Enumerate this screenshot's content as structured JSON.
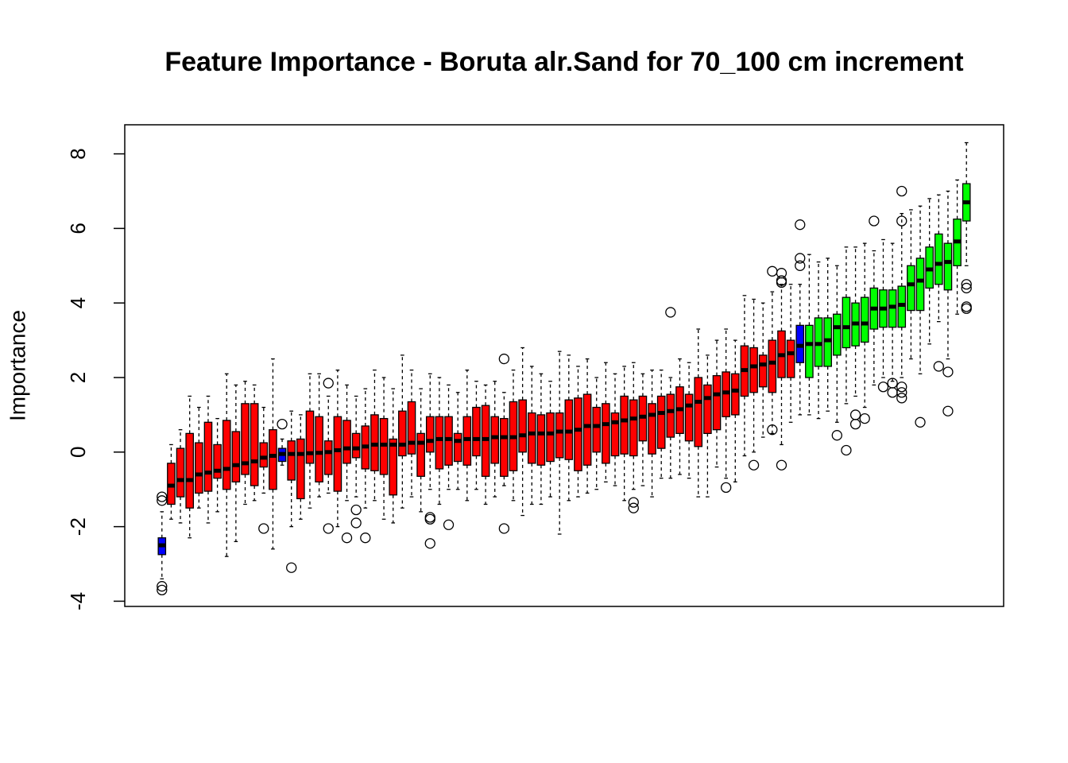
{
  "chart_data": {
    "type": "boxplot",
    "title": "Feature Importance - Boruta alr.Sand for 70_100 cm increment",
    "y_label": "Importance",
    "ylim": [
      -4.14,
      8.78
    ],
    "yticks": [
      -4,
      -2,
      0,
      2,
      4,
      6,
      8
    ],
    "min": [
      -3.4,
      -1.8,
      -1.9,
      -2.3,
      -1.5,
      -1.9,
      -1.6,
      -2.8,
      -2.4,
      -1.4,
      -1.3,
      -1.1,
      -2.6,
      -0.35,
      -2.0,
      -1.8,
      -1.5,
      -1.2,
      -1.1,
      -2.0,
      -1.3,
      -1.2,
      -1.5,
      -1.3,
      -1.8,
      -1.9,
      -1.5,
      -1.2,
      -1.6,
      -1.0,
      -1.4,
      -1.0,
      -1.0,
      -1.3,
      -1.0,
      -1.4,
      -1.2,
      -0.9,
      -1.3,
      -1.7,
      -1.4,
      -1.4,
      -1.2,
      -2.2,
      -1.3,
      -1.2,
      -1.1,
      -1.0,
      -0.8,
      -0.9,
      -1.3,
      -1.0,
      -0.9,
      -1.2,
      -0.7,
      -0.7,
      -0.6,
      -0.7,
      -1.2,
      -1.2,
      -0.4,
      -0.7,
      -0.8,
      -0.1,
      0.0,
      0.4,
      0.5,
      0.2,
      0.8,
      1.0,
      1.0,
      0.9,
      1.1,
      0.8,
      1.3,
      1.5,
      1.2,
      1.8,
      2.0,
      1.9,
      2.0,
      2.5,
      2.1,
      2.9,
      3.5,
      2.5,
      3.7,
      5.0
    ],
    "q1": [
      -2.75,
      -1.4,
      -1.2,
      -1.5,
      -1.1,
      -1.05,
      -0.7,
      -1.0,
      -0.8,
      -0.6,
      -0.9,
      -0.4,
      -1.0,
      -0.25,
      -0.75,
      -1.25,
      -0.3,
      -0.8,
      -0.6,
      -1.05,
      -0.3,
      -0.15,
      -0.45,
      -0.5,
      -0.6,
      -1.15,
      -0.1,
      -0.05,
      -0.65,
      0.0,
      -0.45,
      -0.35,
      -0.25,
      -0.35,
      -0.1,
      -0.65,
      -0.3,
      -0.65,
      -0.5,
      0.0,
      -0.3,
      -0.35,
      -0.25,
      -0.15,
      -0.2,
      -0.5,
      -0.35,
      0.0,
      -0.3,
      -0.1,
      -0.05,
      -0.1,
      0.3,
      -0.05,
      0.1,
      0.4,
      0.5,
      0.3,
      0.15,
      0.5,
      0.6,
      0.95,
      1.0,
      1.5,
      1.6,
      1.75,
      1.6,
      2.0,
      2.0,
      2.4,
      2.0,
      2.3,
      2.3,
      2.6,
      2.8,
      2.85,
      2.95,
      3.3,
      3.35,
      3.35,
      3.35,
      3.8,
      3.8,
      4.4,
      4.5,
      4.35,
      5.0,
      6.2
    ],
    "median": [
      -2.5,
      -0.9,
      -0.75,
      -0.75,
      -0.6,
      -0.55,
      -0.5,
      -0.45,
      -0.35,
      -0.3,
      -0.25,
      -0.15,
      -0.1,
      -0.05,
      -0.05,
      -0.05,
      -0.03,
      -0.02,
      0.0,
      0.05,
      0.1,
      0.1,
      0.15,
      0.2,
      0.2,
      0.2,
      0.2,
      0.25,
      0.25,
      0.3,
      0.35,
      0.35,
      0.3,
      0.35,
      0.35,
      0.35,
      0.4,
      0.4,
      0.4,
      0.45,
      0.5,
      0.5,
      0.5,
      0.55,
      0.55,
      0.6,
      0.7,
      0.7,
      0.75,
      0.8,
      0.85,
      0.9,
      0.95,
      1.0,
      1.05,
      1.1,
      1.15,
      1.25,
      1.35,
      1.45,
      1.55,
      1.6,
      1.65,
      2.2,
      2.3,
      2.35,
      2.4,
      2.6,
      2.65,
      2.85,
      2.9,
      2.9,
      3.0,
      3.35,
      3.35,
      3.45,
      3.45,
      3.85,
      3.85,
      3.9,
      3.95,
      4.5,
      4.6,
      4.9,
      5.05,
      5.1,
      5.65,
      6.7
    ],
    "q3": [
      -2.3,
      -0.3,
      0.1,
      0.5,
      0.25,
      0.8,
      0.2,
      0.85,
      0.55,
      1.3,
      1.3,
      0.25,
      0.6,
      0.1,
      0.3,
      0.35,
      1.1,
      0.95,
      0.3,
      0.95,
      0.85,
      0.5,
      0.7,
      1.0,
      0.9,
      0.35,
      1.1,
      1.35,
      0.5,
      0.95,
      0.95,
      0.95,
      0.5,
      0.95,
      1.2,
      1.25,
      0.95,
      0.9,
      1.35,
      1.4,
      1.05,
      1.0,
      1.05,
      1.05,
      1.4,
      1.45,
      1.55,
      1.2,
      1.3,
      1.05,
      1.5,
      1.4,
      1.5,
      1.3,
      1.5,
      1.55,
      1.75,
      1.55,
      2.0,
      1.8,
      2.05,
      2.15,
      2.1,
      2.85,
      2.8,
      2.6,
      3.0,
      3.25,
      3.0,
      3.4,
      3.4,
      3.6,
      3.6,
      3.7,
      4.15,
      4.0,
      4.15,
      4.4,
      4.35,
      4.35,
      4.45,
      5.0,
      5.2,
      5.5,
      5.85,
      5.6,
      6.25,
      7.2
    ],
    "max": [
      -1.6,
      0.2,
      0.6,
      1.5,
      1.2,
      1.5,
      0.9,
      2.1,
      1.8,
      1.9,
      1.8,
      1.2,
      2.5,
      0.35,
      1.1,
      1.0,
      2.1,
      2.1,
      1.5,
      2.2,
      1.8,
      1.5,
      1.7,
      2.2,
      2.0,
      1.7,
      2.6,
      2.2,
      1.7,
      2.1,
      2.0,
      1.8,
      1.6,
      2.2,
      1.9,
      1.8,
      1.9,
      1.6,
      2.2,
      2.8,
      2.3,
      2.1,
      1.9,
      2.7,
      2.6,
      2.3,
      2.5,
      2.0,
      2.4,
      2.1,
      2.3,
      2.4,
      2.1,
      2.2,
      2.2,
      2.0,
      2.5,
      2.4,
      3.3,
      2.6,
      3.0,
      3.3,
      3.0,
      4.2,
      4.1,
      4.0,
      4.3,
      4.5,
      4.5,
      4.5,
      5.3,
      5.1,
      5.2,
      5.0,
      5.5,
      5.5,
      5.6,
      5.4,
      5.7,
      5.6,
      6.4,
      6.5,
      6.6,
      6.8,
      6.9,
      7.0,
      7.3,
      8.3
    ],
    "outliers": [
      [
        -1.2,
        -1.3,
        -3.6,
        -3.7
      ],
      [],
      [],
      [],
      [],
      [],
      [],
      [],
      [],
      [],
      [],
      [
        -2.05
      ],
      [],
      [
        0.75
      ],
      [
        -3.1
      ],
      [],
      [],
      [],
      [
        1.85,
        -2.05
      ],
      [],
      [
        -2.3
      ],
      [
        -1.55,
        -1.9
      ],
      [
        -2.3
      ],
      [],
      [],
      [],
      [],
      [],
      [],
      [
        -1.75,
        -1.8,
        -2.45
      ],
      [],
      [
        -1.95
      ],
      [],
      [],
      [],
      [],
      [],
      [
        2.5,
        -2.05
      ],
      [],
      [],
      [],
      [],
      [],
      [],
      [],
      [],
      [],
      [],
      [],
      [],
      [],
      [
        -1.35,
        -1.5
      ],
      [],
      [],
      [],
      [
        3.75
      ],
      [],
      [],
      [],
      [],
      [],
      [
        -0.95
      ],
      [],
      [],
      [
        -0.35
      ],
      [],
      [
        4.85,
        0.6
      ],
      [
        4.8,
        4.6,
        4.55,
        -0.35
      ],
      [],
      [
        6.1,
        5.2,
        5.0
      ],
      [],
      [],
      [],
      [
        0.45
      ],
      [
        0.05
      ],
      [
        1.0,
        0.75
      ],
      [
        0.9
      ],
      [
        6.2
      ],
      [
        1.75
      ],
      [
        1.85,
        1.6
      ],
      [
        7.0,
        6.2,
        1.6,
        1.75,
        1.45
      ],
      [],
      [
        0.8
      ],
      [],
      [
        2.3
      ],
      [
        2.15,
        1.1
      ],
      [],
      [
        4.5,
        4.4,
        3.9,
        3.85
      ]
    ],
    "box_colors": [
      "#0000ff",
      "#ff0000",
      "#ff0000",
      "#ff0000",
      "#ff0000",
      "#ff0000",
      "#ff0000",
      "#ff0000",
      "#ff0000",
      "#ff0000",
      "#ff0000",
      "#ff0000",
      "#ff0000",
      "#0000ff",
      "#ff0000",
      "#ff0000",
      "#ff0000",
      "#ff0000",
      "#ff0000",
      "#ff0000",
      "#ff0000",
      "#ff0000",
      "#ff0000",
      "#ff0000",
      "#ff0000",
      "#ff0000",
      "#ff0000",
      "#ff0000",
      "#ff0000",
      "#ff0000",
      "#ff0000",
      "#ff0000",
      "#ff0000",
      "#ff0000",
      "#ff0000",
      "#ff0000",
      "#ff0000",
      "#ff0000",
      "#ff0000",
      "#ff0000",
      "#ff0000",
      "#ff0000",
      "#ff0000",
      "#ff0000",
      "#ff0000",
      "#ff0000",
      "#ff0000",
      "#ff0000",
      "#ff0000",
      "#ff0000",
      "#ff0000",
      "#ff0000",
      "#ff0000",
      "#ff0000",
      "#ff0000",
      "#ff0000",
      "#ff0000",
      "#ff0000",
      "#ff0000",
      "#ff0000",
      "#ff0000",
      "#ff0000",
      "#ff0000",
      "#ff0000",
      "#ff0000",
      "#ff0000",
      "#ff0000",
      "#ff0000",
      "#ff0000",
      "#0000ff",
      "#00ff00",
      "#00ff00",
      "#00ff00",
      "#00ff00",
      "#00ff00",
      "#00ff00",
      "#00ff00",
      "#00ff00",
      "#00ff00",
      "#00ff00",
      "#00ff00",
      "#00ff00",
      "#00ff00",
      "#00ff00",
      "#00ff00",
      "#00ff00",
      "#00ff00",
      "#00ff00"
    ]
  }
}
